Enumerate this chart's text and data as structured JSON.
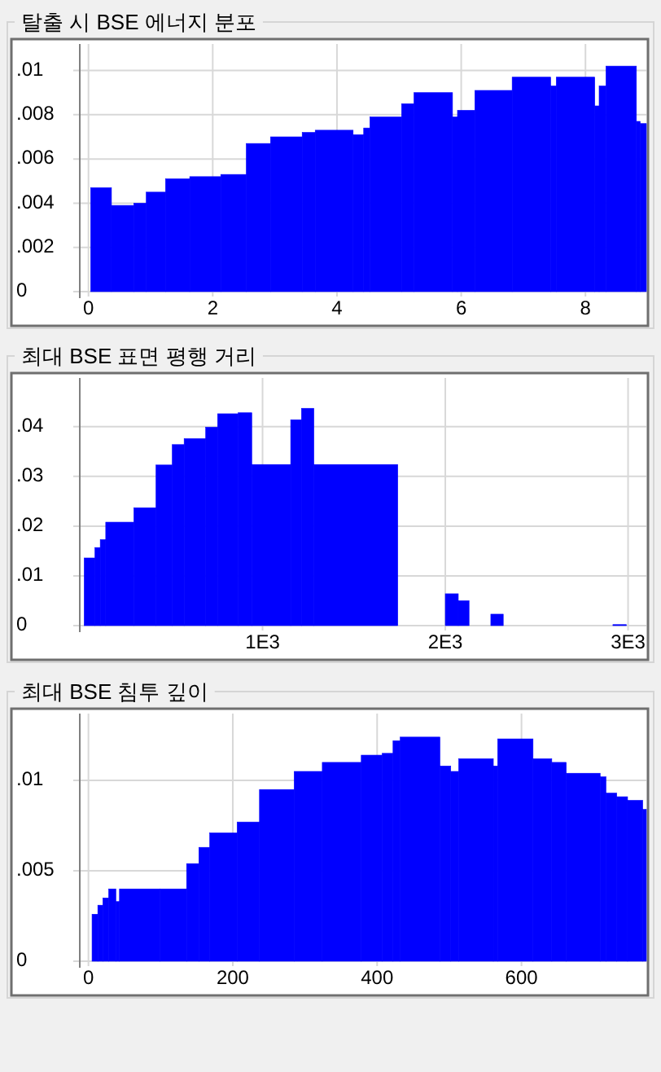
{
  "chart_data": [
    {
      "type": "histogram",
      "title": "탈출 시 BSE 에너지 분포",
      "color": "#0000ff",
      "grid": true,
      "bins": [
        0.035,
        0.37,
        0.73,
        0.93,
        1.24,
        1.63,
        2.13,
        2.54,
        2.93,
        3.44,
        3.65,
        4.26,
        4.43,
        4.53,
        5.04,
        5.24,
        5.86,
        5.94,
        6.22,
        6.82,
        7.44,
        7.53,
        8.15,
        8.22,
        8.33,
        8.82,
        8.88,
        8.98
      ],
      "values": [
        0.0047,
        0.0039,
        0.004,
        0.0045,
        0.0051,
        0.0052,
        0.0053,
        0.0067,
        0.007,
        0.0072,
        0.0073,
        0.0071,
        0.0074,
        0.0079,
        0.0085,
        0.009,
        0.0079,
        0.0082,
        0.0091,
        0.0097,
        0.0093,
        0.0097,
        0.0084,
        0.0093,
        0.0102,
        0.0077,
        0.0076
      ],
      "xlim": [
        -0.14,
        8.98
      ],
      "ylim": [
        0,
        0.0112
      ],
      "xticks": [
        0,
        2,
        4,
        6,
        8
      ],
      "yticks": [
        {
          "value": 0,
          "label": "0"
        },
        {
          "value": 0.002,
          "label": ".002"
        },
        {
          "value": 0.004,
          "label": ".004"
        },
        {
          "value": 0.006,
          "label": ".006"
        },
        {
          "value": 0.008,
          "label": ".008"
        },
        {
          "value": 0.01,
          "label": ".01"
        }
      ]
    },
    {
      "type": "histogram",
      "title": "최대 BSE 표면 평행 거리",
      "color": "#0000ff",
      "grid": true,
      "bins": [
        24,
        83,
        112,
        142,
        296,
        417,
        506,
        571,
        689,
        754,
        867,
        941,
        1154,
        1213,
        1281,
        1740,
        2000,
        2071,
        2130,
        2249,
        2317,
        2917,
        2991
      ],
      "values": [
        0.0136,
        0.0157,
        0.0173,
        0.0208,
        0.0237,
        0.0323,
        0.0364,
        0.0376,
        0.0399,
        0.0426,
        0.0428,
        0.0324,
        0.0414,
        0.0437,
        0.0324,
        0,
        0.0064,
        0.005,
        0,
        0.0023,
        0,
        0.0002
      ],
      "xlim": [
        0,
        3100
      ],
      "ylim": [
        0,
        0.0498
      ],
      "xticks": [
        {
          "value": 1000,
          "label": "1E3"
        },
        {
          "value": 2000,
          "label": "2E3"
        },
        {
          "value": 3000,
          "label": "3E3"
        }
      ],
      "yticks": [
        {
          "value": 0,
          "label": "0"
        },
        {
          "value": 0.01,
          "label": ".01"
        },
        {
          "value": 0.02,
          "label": ".02"
        },
        {
          "value": 0.03,
          "label": ".03"
        },
        {
          "value": 0.04,
          "label": ".04"
        }
      ]
    },
    {
      "type": "histogram",
      "title": "최대 BSE 침투 깊이",
      "color": "#0000ff",
      "grid": true,
      "bins": [
        5,
        13,
        20,
        28,
        38,
        43,
        99,
        136,
        153,
        168,
        206,
        237,
        285,
        324,
        378,
        407,
        422,
        432,
        487,
        502,
        513,
        561,
        567,
        616,
        642,
        662,
        709,
        717,
        732,
        747,
        768,
        773
      ],
      "values": [
        0.0026,
        0.0031,
        0.0035,
        0.004,
        0.0033,
        0.004,
        0.004,
        0.0054,
        0.0063,
        0.0071,
        0.0077,
        0.0095,
        0.0105,
        0.011,
        0.0114,
        0.0115,
        0.0122,
        0.0124,
        0.0108,
        0.0105,
        0.0112,
        0.0108,
        0.0123,
        0.0112,
        0.011,
        0.0104,
        0.0102,
        0.0093,
        0.0091,
        0.0089,
        0.0084
      ],
      "xlim": [
        -12,
        773
      ],
      "ylim": [
        0,
        0.0137
      ],
      "xticks": [
        0,
        200,
        400,
        600
      ],
      "yticks": [
        {
          "value": 0,
          "label": "0"
        },
        {
          "value": 0.005,
          "label": ".005"
        },
        {
          "value": 0.01,
          "label": ".01"
        }
      ]
    }
  ]
}
